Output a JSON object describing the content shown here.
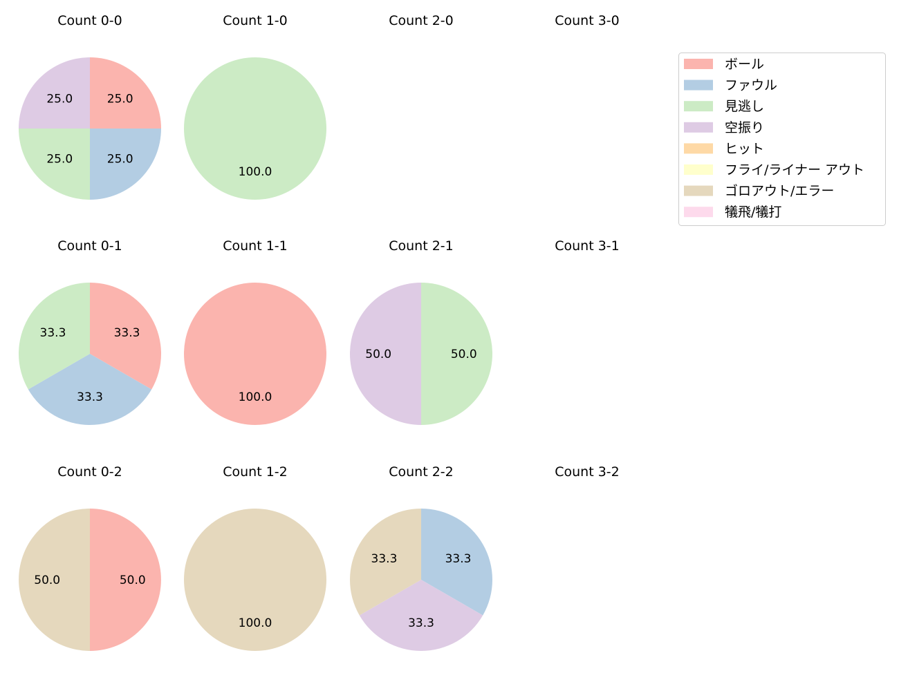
{
  "chart_data": {
    "type": "pie",
    "legend": {
      "placement": "top-right",
      "entries": [
        "ボール",
        "ファウル",
        "見逃し",
        "空振り",
        "ヒット",
        "フライ/ライナー アウト",
        "ゴロアウト/エラー",
        "犠飛/犠打"
      ],
      "colors": [
        "#fbb4ae",
        "#b3cde3",
        "#ccebc5",
        "#decbe4",
        "#fed9a6",
        "#ffffcc",
        "#e5d8bd",
        "#fddaec"
      ]
    },
    "panels": [
      {
        "title": "Count 0-0",
        "row": 0,
        "col": 0,
        "slices": [
          {
            "category": 0,
            "value": 25.0
          },
          {
            "category": 1,
            "value": 25.0
          },
          {
            "category": 2,
            "value": 25.0
          },
          {
            "category": 3,
            "value": 25.0
          }
        ]
      },
      {
        "title": "Count 1-0",
        "row": 0,
        "col": 1,
        "slices": [
          {
            "category": 2,
            "value": 100.0
          }
        ]
      },
      {
        "title": "Count 2-0",
        "row": 0,
        "col": 2,
        "slices": []
      },
      {
        "title": "Count 3-0",
        "row": 0,
        "col": 3,
        "slices": []
      },
      {
        "title": "Count 0-1",
        "row": 1,
        "col": 0,
        "slices": [
          {
            "category": 0,
            "value": 33.3
          },
          {
            "category": 1,
            "value": 33.3
          },
          {
            "category": 2,
            "value": 33.3
          }
        ]
      },
      {
        "title": "Count 1-1",
        "row": 1,
        "col": 1,
        "slices": [
          {
            "category": 0,
            "value": 100.0
          }
        ]
      },
      {
        "title": "Count 2-1",
        "row": 1,
        "col": 2,
        "slices": [
          {
            "category": 2,
            "value": 50.0
          },
          {
            "category": 3,
            "value": 50.0
          }
        ]
      },
      {
        "title": "Count 3-1",
        "row": 1,
        "col": 3,
        "slices": []
      },
      {
        "title": "Count 0-2",
        "row": 2,
        "col": 0,
        "slices": [
          {
            "category": 0,
            "value": 50.0
          },
          {
            "category": 6,
            "value": 50.0
          }
        ]
      },
      {
        "title": "Count 1-2",
        "row": 2,
        "col": 1,
        "slices": [
          {
            "category": 6,
            "value": 100.0
          }
        ]
      },
      {
        "title": "Count 2-2",
        "row": 2,
        "col": 2,
        "slices": [
          {
            "category": 1,
            "value": 33.3
          },
          {
            "category": 3,
            "value": 33.3
          },
          {
            "category": 6,
            "value": 33.3
          }
        ]
      },
      {
        "title": "Count 3-2",
        "row": 2,
        "col": 3,
        "slices": []
      }
    ],
    "start_angle": 90,
    "direction": "clockwise"
  }
}
